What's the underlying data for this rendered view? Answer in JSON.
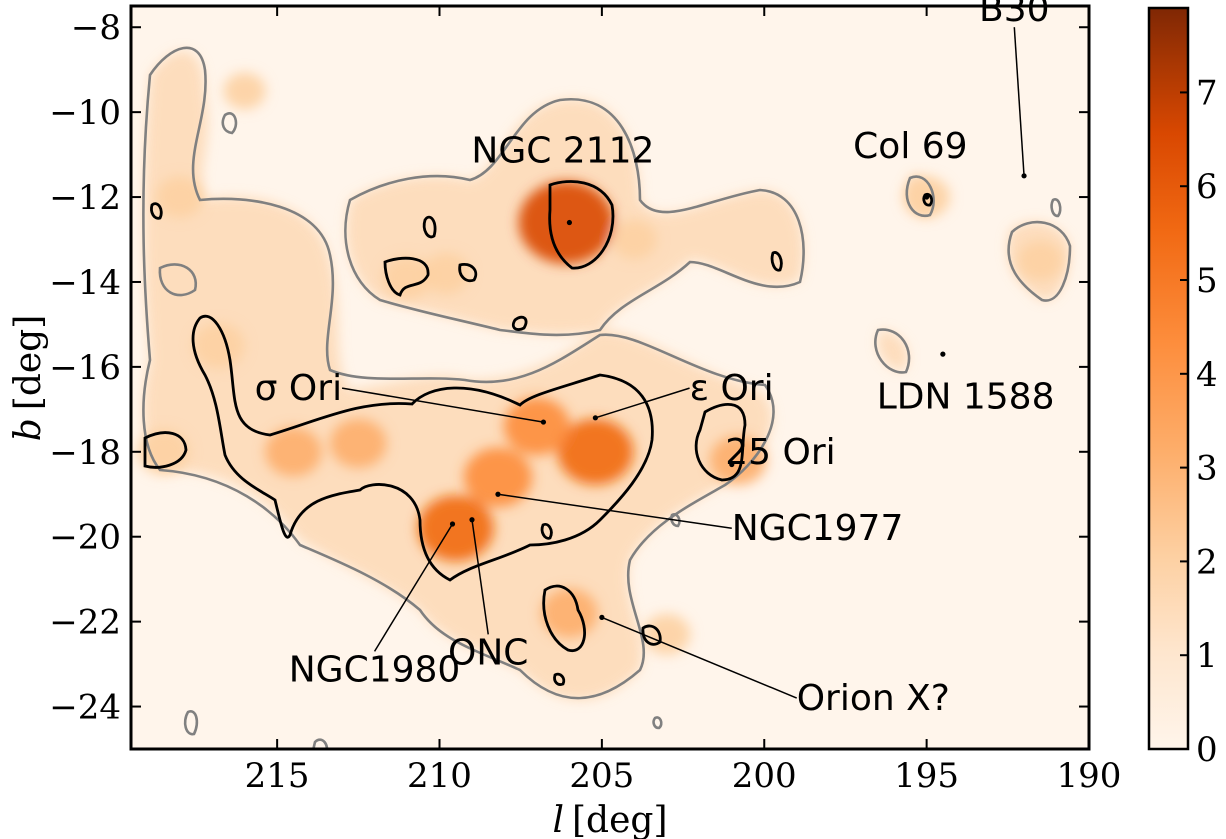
{
  "chart_data": {
    "type": "heatmap",
    "title": "",
    "xlabel_var": "l",
    "xlabel_unit": "[deg]",
    "ylabel_var": "b",
    "ylabel_unit": "[deg]",
    "xlim": [
      219.5,
      190
    ],
    "ylim": [
      -25,
      -7.5
    ],
    "x_inverted": true,
    "x_ticks": [
      215,
      210,
      205,
      200,
      195,
      190
    ],
    "y_ticks": [
      -8,
      -10,
      -12,
      -14,
      -16,
      -18,
      -20,
      -22,
      -24
    ],
    "x_tick_labels": [
      "215",
      "210",
      "205",
      "200",
      "195",
      "190"
    ],
    "y_tick_labels": [
      "−8",
      "−10",
      "−12",
      "−14",
      "−16",
      "−18",
      "−20",
      "−22",
      "−24"
    ],
    "colorbar": {
      "colormap": "Oranges",
      "min": 0,
      "max": 7.9,
      "ticks": [
        0,
        1,
        2,
        3,
        4,
        5,
        6,
        7
      ],
      "tick_labels": [
        "0",
        "1",
        "2",
        "3",
        "4",
        "5",
        "6",
        "7"
      ],
      "colors": [
        "#fff5eb",
        "#fdd0a2",
        "#fd8d3c",
        "#d94801",
        "#7f2704"
      ]
    },
    "contour_colors": {
      "low": "#808080",
      "high": "#000000"
    },
    "density_peaks": [
      {
        "l": 206.1,
        "b": -12.6,
        "value": 7.0
      },
      {
        "l": 208.2,
        "b": -18.6,
        "value": 4.2
      },
      {
        "l": 209.5,
        "b": -19.8,
        "value": 5.0
      },
      {
        "l": 205.2,
        "b": -18.0,
        "value": 5.0
      },
      {
        "l": 207.0,
        "b": -17.4,
        "value": 4.0
      },
      {
        "l": 214.5,
        "b": -18.0,
        "value": 3.0
      },
      {
        "l": 212.5,
        "b": -17.8,
        "value": 3.0
      },
      {
        "l": 218.5,
        "b": -18.0,
        "value": 2.5
      },
      {
        "l": 200.8,
        "b": -18.2,
        "value": 3.0
      },
      {
        "l": 206.0,
        "b": -21.8,
        "value": 3.0
      },
      {
        "l": 216.8,
        "b": -15.5,
        "value": 2.5
      },
      {
        "l": 209.8,
        "b": -13.8,
        "value": 2.0
      },
      {
        "l": 211.0,
        "b": -13.9,
        "value": 2.2
      },
      {
        "l": 218.0,
        "b": -12.0,
        "value": 2.0
      },
      {
        "l": 195.0,
        "b": -12.0,
        "value": 2.0
      },
      {
        "l": 191.5,
        "b": -13.5,
        "value": 1.8
      },
      {
        "l": 203.0,
        "b": -22.3,
        "value": 2.0
      },
      {
        "l": 204.0,
        "b": -13.0,
        "value": 1.8
      },
      {
        "l": 216.0,
        "b": -9.5,
        "value": 1.5
      }
    ],
    "annotations": [
      {
        "label": "B30",
        "l": 192.0,
        "b": -11.5,
        "text_l": 192.3,
        "text_b": -8.0,
        "leader": true
      },
      {
        "label": "Col 69",
        "l": 195.0,
        "b": -12.0,
        "text_l": 195.5,
        "text_b": -10.8,
        "leader": false
      },
      {
        "label": "NGC 2112",
        "l": 206.0,
        "b": -12.6,
        "text_l": 206.2,
        "text_b": -10.9,
        "leader": false
      },
      {
        "label": "σ Ori",
        "l": 206.8,
        "b": -17.3,
        "text_l": 213.0,
        "text_b": -16.5,
        "leader": true
      },
      {
        "label": "ε Ori",
        "l": 205.2,
        "b": -17.2,
        "text_l": 202.3,
        "text_b": -16.5,
        "leader": true
      },
      {
        "label": "LDN 1588",
        "l": 194.5,
        "b": -15.7,
        "text_l": 193.8,
        "text_b": -16.7,
        "leader": false
      },
      {
        "label": "25 Ori",
        "l": 201.0,
        "b": -18.3,
        "text_l": 199.5,
        "text_b": -18.0,
        "leader": false
      },
      {
        "label": "NGC1977",
        "l": 208.2,
        "b": -19.0,
        "text_l": 201.0,
        "text_b": -19.8,
        "leader": true
      },
      {
        "label": "NGC1980",
        "l": 209.6,
        "b": -19.7,
        "text_l": 212.0,
        "text_b": -22.7,
        "leader": true
      },
      {
        "label": "ONC",
        "l": 209.0,
        "b": -19.6,
        "text_l": 208.5,
        "text_b": -22.3,
        "leader": true
      },
      {
        "label": "Orion X?",
        "l": 205.0,
        "b": -21.9,
        "text_l": 199.0,
        "text_b": -23.8,
        "leader": true
      }
    ]
  }
}
